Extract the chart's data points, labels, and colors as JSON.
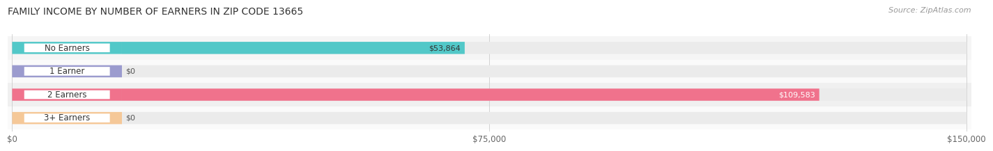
{
  "title": "FAMILY INCOME BY NUMBER OF EARNERS IN ZIP CODE 13665",
  "source": "Source: ZipAtlas.com",
  "categories": [
    "No Earners",
    "1 Earner",
    "2 Earners",
    "3+ Earners"
  ],
  "values": [
    53864,
    0,
    109583,
    0
  ],
  "bar_colors": [
    "#52C8C8",
    "#9B9BCE",
    "#F0728C",
    "#F5C898"
  ],
  "value_label_colors": [
    "#333333",
    "#333333",
    "#ffffff",
    "#333333"
  ],
  "xmax": 150000,
  "xticks": [
    0,
    75000,
    150000
  ],
  "xticklabels": [
    "$0",
    "$75,000",
    "$150,000"
  ],
  "fig_bg_color": "#FFFFFF",
  "bar_height": 0.52,
  "row_bg_colors": [
    "#F5F5F5",
    "#FAFAFA",
    "#F0F0F0",
    "#FAFAFA"
  ],
  "track_color": "#EBEBEB",
  "label_pill_white": "#FFFFFF"
}
